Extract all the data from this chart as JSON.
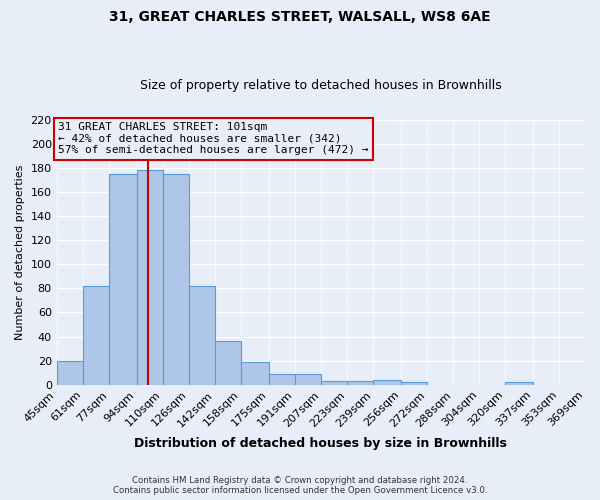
{
  "title": "31, GREAT CHARLES STREET, WALSALL, WS8 6AE",
  "subtitle": "Size of property relative to detached houses in Brownhills",
  "xlabel": "Distribution of detached houses by size in Brownhills",
  "ylabel": "Number of detached properties",
  "bin_edges": [
    45,
    61,
    77,
    94,
    110,
    126,
    142,
    158,
    175,
    191,
    207,
    223,
    239,
    256,
    272,
    288,
    304,
    320,
    337,
    353,
    369
  ],
  "bar_heights": [
    20,
    82,
    175,
    178,
    175,
    82,
    36,
    19,
    9,
    9,
    3,
    3,
    4,
    2,
    0,
    0,
    0,
    2,
    0,
    0
  ],
  "bar_color": "#aec6e8",
  "bar_edge_color": "#5b9bd5",
  "background_color": "#e8eef7",
  "grid_color": "#ffffff",
  "property_line_x": 101,
  "property_line_color": "#cc0000",
  "annotation_title": "31 GREAT CHARLES STREET: 101sqm",
  "annotation_line1": "← 42% of detached houses are smaller (342)",
  "annotation_line2": "57% of semi-detached houses are larger (472) →",
  "annotation_box_edge": "#cc0000",
  "ylim": [
    0,
    220
  ],
  "yticks": [
    0,
    20,
    40,
    60,
    80,
    100,
    120,
    140,
    160,
    180,
    200,
    220
  ],
  "tick_labels": [
    "45sqm",
    "61sqm",
    "77sqm",
    "94sqm",
    "110sqm",
    "126sqm",
    "142sqm",
    "158sqm",
    "175sqm",
    "191sqm",
    "207sqm",
    "223sqm",
    "239sqm",
    "256sqm",
    "272sqm",
    "288sqm",
    "304sqm",
    "320sqm",
    "337sqm",
    "353sqm",
    "369sqm"
  ],
  "footer_line1": "Contains HM Land Registry data © Crown copyright and database right 2024.",
  "footer_line2": "Contains public sector information licensed under the Open Government Licence v3.0."
}
